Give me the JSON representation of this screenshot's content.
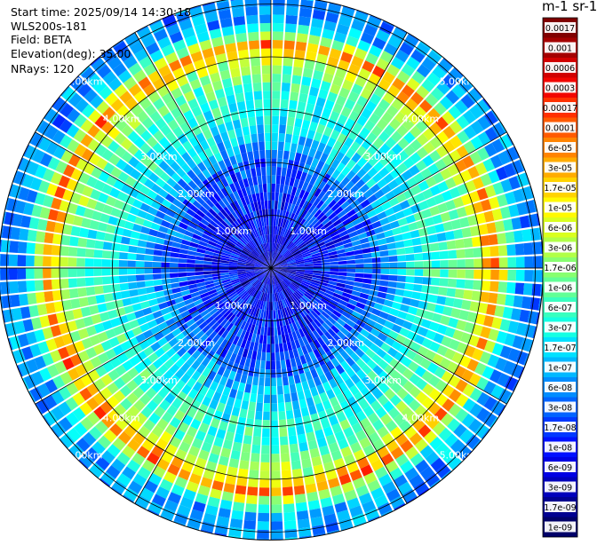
{
  "header": {
    "start_time": "Start time: 2025/09/14 14:30:18",
    "instrument": "WLS200s-181",
    "field": "Field: BETA",
    "elevation": "Elevation(deg): 35.00",
    "nrays": "NRays: 120"
  },
  "colorbar": {
    "title": "m-1 sr-1",
    "labels": [
      "0.0017",
      "0.001",
      "0.0006",
      "0.0003",
      "0.00017",
      "0.0001",
      "6e-05",
      "3e-05",
      "1.7e-05",
      "1e-05",
      "6e-06",
      "3e-06",
      "1.7e-06",
      "1e-06",
      "6e-07",
      "3e-07",
      "1.7e-07",
      "1e-07",
      "6e-08",
      "3e-08",
      "1.7e-08",
      "1e-08",
      "6e-09",
      "3e-09",
      "1.7e-09",
      "1e-09"
    ],
    "colors": [
      "#800000",
      "#a40000",
      "#d10000",
      "#f20500",
      "#ff3000",
      "#ff5a00",
      "#ff8400",
      "#ffac00",
      "#ffd300",
      "#fff900",
      "#d9ff1e",
      "#b0ff47",
      "#87ff70",
      "#61ff96",
      "#38ffbf",
      "#14ffe3",
      "#00e1ff",
      "#00b8ff",
      "#008cff",
      "#0063ff",
      "#0038ff",
      "#0010ff",
      "#0000e3",
      "#0000bb",
      "#000090",
      "#000068"
    ]
  },
  "chart_data": {
    "type": "heatmap",
    "projection": "polar PPI",
    "field": "BETA",
    "units": "m-1 sr-1",
    "scale": "log",
    "range_min": 1e-09,
    "range_max": 0.0017,
    "n_rays": 120,
    "elevation_deg": 35.0,
    "range_rings": [
      {
        "value": 1.0,
        "label": "1.00km"
      },
      {
        "value": 2.0,
        "label": "2.00km"
      },
      {
        "value": 3.0,
        "label": "3.00km"
      },
      {
        "value": 4.0,
        "label": "4.00km"
      },
      {
        "value": 5.0,
        "label": "5.00km"
      }
    ],
    "max_range_km": 5.15,
    "range_profile_km": [
      {
        "r": 0.0,
        "log_beta": -8.4
      },
      {
        "r": 0.5,
        "log_beta": -8.3
      },
      {
        "r": 1.0,
        "log_beta": -8.1
      },
      {
        "r": 1.5,
        "log_beta": -7.9
      },
      {
        "r": 2.0,
        "log_beta": -7.6
      },
      {
        "r": 2.5,
        "log_beta": -6.9
      },
      {
        "r": 3.0,
        "log_beta": -6.5
      },
      {
        "r": 3.5,
        "log_beta": -6.3
      },
      {
        "r": 4.0,
        "log_beta": -5.4
      },
      {
        "r": 4.2,
        "log_beta": -4.1
      },
      {
        "r": 4.4,
        "log_beta": -5.6
      },
      {
        "r": 4.7,
        "log_beta": -7.2
      },
      {
        "r": 5.15,
        "log_beta": -7.4
      }
    ]
  }
}
